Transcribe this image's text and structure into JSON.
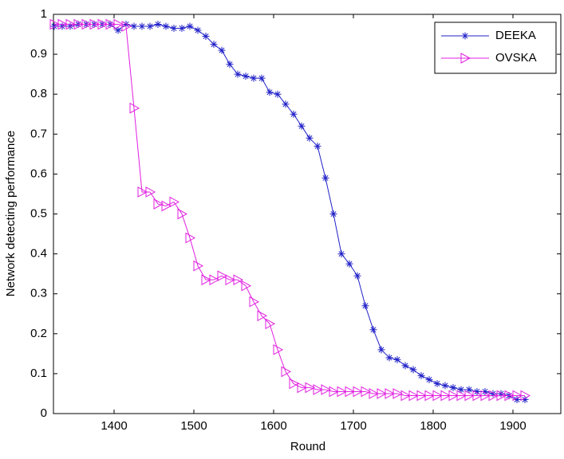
{
  "chart_data": {
    "type": "line",
    "xlabel": "Round",
    "ylabel": "Network detecting performance",
    "x": [
      1325,
      1335,
      1345,
      1355,
      1365,
      1375,
      1385,
      1395,
      1405,
      1415,
      1425,
      1435,
      1445,
      1455,
      1465,
      1475,
      1485,
      1495,
      1505,
      1515,
      1525,
      1535,
      1545,
      1555,
      1565,
      1575,
      1585,
      1595,
      1605,
      1615,
      1625,
      1635,
      1645,
      1655,
      1665,
      1675,
      1685,
      1695,
      1705,
      1715,
      1725,
      1735,
      1745,
      1755,
      1765,
      1775,
      1785,
      1795,
      1805,
      1815,
      1825,
      1835,
      1845,
      1855,
      1865,
      1875,
      1885,
      1895,
      1905,
      1915
    ],
    "series": [
      {
        "name": "DEEKA",
        "color": "#2020c8",
        "marker": "*",
        "values": [
          0.97,
          0.97,
          0.97,
          0.975,
          0.975,
          0.975,
          0.975,
          0.975,
          0.96,
          0.975,
          0.97,
          0.97,
          0.97,
          0.975,
          0.97,
          0.965,
          0.965,
          0.97,
          0.96,
          0.945,
          0.925,
          0.91,
          0.875,
          0.85,
          0.845,
          0.84,
          0.84,
          0.805,
          0.8,
          0.775,
          0.75,
          0.72,
          0.69,
          0.67,
          0.59,
          0.5,
          0.4,
          0.375,
          0.345,
          0.27,
          0.21,
          0.16,
          0.14,
          0.135,
          0.12,
          0.11,
          0.095,
          0.085,
          0.075,
          0.07,
          0.065,
          0.06,
          0.06,
          0.055,
          0.055,
          0.05,
          0.05,
          0.045,
          0.035,
          0.035
        ]
      },
      {
        "name": "OVSKA",
        "color": "#e020e0",
        "marker": ">",
        "values": [
          0.975,
          0.975,
          0.975,
          0.975,
          0.975,
          0.975,
          0.975,
          0.975,
          0.975,
          0.97,
          0.765,
          0.555,
          0.555,
          0.525,
          0.52,
          0.53,
          0.5,
          0.44,
          0.37,
          0.335,
          0.335,
          0.345,
          0.335,
          0.335,
          0.32,
          0.28,
          0.245,
          0.225,
          0.16,
          0.105,
          0.075,
          0.065,
          0.065,
          0.06,
          0.06,
          0.055,
          0.055,
          0.055,
          0.055,
          0.055,
          0.05,
          0.05,
          0.05,
          0.05,
          0.045,
          0.045,
          0.045,
          0.045,
          0.045,
          0.045,
          0.045,
          0.045,
          0.045,
          0.045,
          0.045,
          0.045,
          0.045,
          0.045,
          0.045,
          0.045
        ]
      }
    ],
    "xlim": [
      1324,
      1960
    ],
    "xticks": [
      1400,
      1500,
      1600,
      1700,
      1800,
      1900
    ],
    "ylim": [
      0,
      1
    ],
    "yticks": [
      0,
      0.1,
      0.2,
      0.3,
      0.4,
      0.5,
      0.6,
      0.7,
      0.8,
      0.9,
      1
    ],
    "legend": "upper right"
  }
}
